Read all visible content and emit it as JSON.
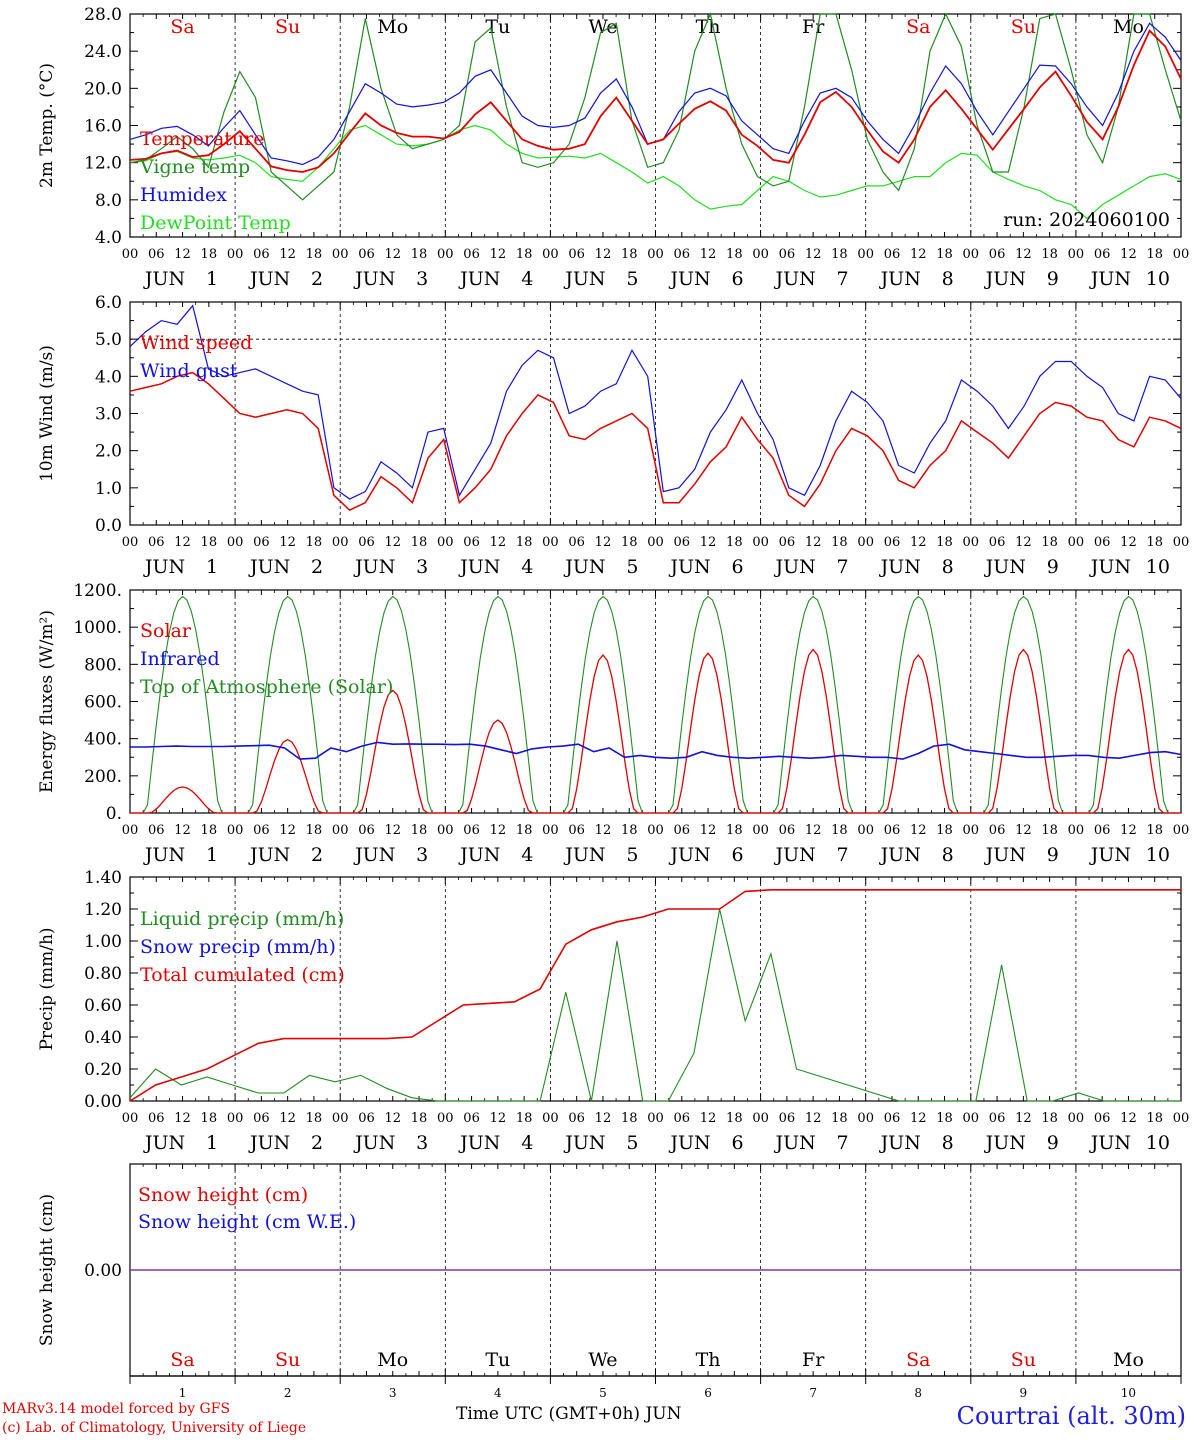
{
  "colors": {
    "temperature": "#e00000",
    "vigne": "#228b22",
    "humidex": "#1010e0",
    "dewpoint": "#22dd22",
    "snow_height": "#e00000",
    "snow_we": "#1010e0",
    "zero_line": "#7a3aa0"
  },
  "day_labels": [
    "Sa",
    "Su",
    "Mo",
    "Tu",
    "We",
    "Th",
    "Fr",
    "Sa",
    "Su",
    "Mo"
  ],
  "day_label_colors": [
    "#e00000",
    "#e00000",
    "#000000",
    "#000000",
    "#000000",
    "#000000",
    "#000000",
    "#e00000",
    "#e00000",
    "#000000"
  ],
  "day_numbers": [
    "1",
    "2",
    "3",
    "4",
    "5",
    "6",
    "7",
    "8",
    "9",
    "10"
  ],
  "hour_ticks": [
    "00",
    "06",
    "12",
    "18"
  ],
  "month": "JUN",
  "footer": {
    "line1": "MARv3.14 model forced by GFS",
    "line2": "(c) Lab. of Climatology, University of Liege",
    "axis_title": "Time UTC (GMT+0h)",
    "axis_month": "JUN",
    "station": "Courtrai (alt. 30m)"
  },
  "chart_data": [
    {
      "type": "line",
      "ylabel": "2m Temp. (°C)",
      "ylim": [
        4.0,
        28.0
      ],
      "yticks": [
        "4.0",
        "8.0",
        "12.0",
        "16.0",
        "20.0",
        "24.0",
        "28.0"
      ],
      "run_label": "run: 2024060100",
      "series": [
        {
          "name": "Temperature",
          "color": "#e00000",
          "values": [
            12.3,
            12.4,
            13.0,
            13.3,
            12.6,
            12.8,
            14.0,
            15.4,
            13.5,
            11.6,
            11.2,
            11.0,
            11.5,
            13.0,
            15.2,
            17.3,
            16.0,
            15.2,
            14.8,
            14.8,
            14.6,
            15.3,
            17.2,
            18.5,
            16.5,
            14.5,
            13.8,
            13.4,
            13.5,
            14.0,
            17.0,
            19.0,
            16.5,
            14.0,
            14.5,
            16.2,
            17.8,
            18.6,
            17.6,
            15.0,
            13.8,
            12.3,
            12.0,
            15.0,
            18.5,
            19.6,
            18.0,
            15.5,
            13.2,
            12.0,
            14.5,
            18.0,
            19.8,
            17.8,
            15.6,
            13.4,
            15.6,
            17.8,
            20.1,
            21.8,
            19.2,
            16.4,
            14.5,
            18.0,
            22.5,
            26.2,
            24.5,
            21.0
          ]
        },
        {
          "name": "Vigne temp",
          "color": "#228b22",
          "values": [
            12.0,
            12.3,
            13.5,
            14.8,
            13.5,
            11.5,
            17.5,
            21.8,
            19.0,
            11.0,
            9.5,
            8.0,
            9.5,
            11.0,
            18.0,
            27.5,
            20.0,
            15.0,
            13.5,
            14.0,
            14.5,
            16.0,
            25.0,
            26.5,
            18.0,
            12.0,
            11.5,
            12.0,
            14.0,
            19.0,
            26.0,
            27.0,
            16.5,
            11.5,
            12.0,
            15.5,
            24.0,
            28.0,
            20.0,
            14.0,
            10.5,
            9.5,
            10.0,
            18.0,
            28.0,
            29.0,
            22.0,
            14.5,
            11.0,
            9.0,
            13.5,
            24.0,
            28.0,
            24.5,
            16.0,
            11.0,
            11.0,
            18.0,
            27.5,
            28.5,
            22.0,
            15.0,
            12.0,
            18.0,
            28.0,
            28.0,
            22.0,
            16.5
          ]
        },
        {
          "name": "Humidex",
          "color": "#1010e0",
          "values": [
            14.5,
            15.0,
            15.7,
            15.9,
            15.0,
            13.8,
            15.8,
            17.6,
            15.0,
            12.5,
            12.2,
            11.8,
            12.6,
            14.5,
            17.5,
            20.5,
            19.5,
            18.3,
            18.0,
            18.2,
            18.5,
            19.5,
            21.3,
            22.0,
            19.5,
            17.0,
            16.0,
            15.8,
            16.0,
            16.8,
            19.5,
            21.0,
            18.0,
            14.0,
            14.5,
            17.5,
            19.5,
            20.0,
            19.2,
            16.5,
            15.0,
            13.5,
            13.0,
            16.5,
            19.5,
            20.0,
            19.0,
            16.5,
            14.5,
            13.0,
            16.0,
            19.5,
            22.4,
            20.5,
            17.5,
            15.0,
            17.5,
            20.0,
            22.5,
            22.4,
            20.5,
            18.0,
            16.0,
            19.5,
            24.0,
            27.0,
            25.5,
            23.0
          ]
        },
        {
          "name": "DewPoint Temp",
          "color": "#22dd22",
          "values": [
            12.0,
            12.2,
            13.0,
            13.2,
            12.5,
            12.3,
            12.5,
            12.8,
            12.0,
            10.5,
            10.2,
            10.0,
            11.5,
            13.5,
            15.5,
            16.0,
            15.0,
            14.0,
            13.8,
            14.0,
            14.5,
            15.5,
            16.0,
            15.5,
            14.0,
            13.0,
            12.5,
            12.6,
            12.7,
            12.5,
            13.0,
            12.0,
            11.0,
            9.8,
            10.5,
            9.5,
            8.0,
            7.0,
            7.3,
            7.5,
            9.0,
            10.5,
            10.0,
            9.0,
            8.3,
            8.5,
            9.0,
            9.5,
            9.5,
            10.0,
            10.5,
            10.5,
            12.0,
            13.0,
            12.8,
            11.0,
            10.2,
            9.5,
            9.0,
            8.0,
            7.5,
            6.0,
            7.5,
            8.5,
            9.5,
            10.5,
            10.8,
            10.2
          ]
        }
      ]
    },
    {
      "type": "line",
      "ylabel": "10m Wind (m/s)",
      "ylim": [
        0.0,
        6.0
      ],
      "yticks": [
        "0.0",
        "1.0",
        "2.0",
        "3.0",
        "4.0",
        "5.0",
        "6.0"
      ],
      "dashed_reference": 5.0,
      "series": [
        {
          "name": "Wind speed",
          "color": "#e00000",
          "values": [
            3.6,
            3.7,
            3.8,
            4.0,
            4.1,
            3.8,
            3.4,
            3.0,
            2.9,
            3.0,
            3.1,
            3.0,
            2.6,
            0.8,
            0.4,
            0.6,
            1.3,
            1.0,
            0.6,
            1.8,
            2.3,
            0.6,
            1.0,
            1.5,
            2.4,
            3.0,
            3.5,
            3.3,
            2.4,
            2.3,
            2.6,
            2.8,
            3.0,
            2.6,
            0.6,
            0.6,
            1.1,
            1.7,
            2.1,
            2.9,
            2.3,
            1.8,
            0.8,
            0.5,
            1.1,
            2.0,
            2.6,
            2.4,
            2.0,
            1.2,
            1.0,
            1.6,
            2.0,
            2.8,
            2.5,
            2.2,
            1.8,
            2.4,
            3.0,
            3.3,
            3.2,
            2.9,
            2.8,
            2.3,
            2.1,
            2.9,
            2.8,
            2.6
          ]
        },
        {
          "name": "Wind gust",
          "color": "#1010e0",
          "values": [
            4.8,
            5.2,
            5.5,
            5.4,
            5.9,
            4.2,
            4.0,
            4.1,
            4.2,
            4.0,
            3.8,
            3.6,
            3.5,
            1.0,
            0.7,
            0.9,
            1.7,
            1.4,
            1.0,
            2.5,
            2.6,
            0.8,
            1.5,
            2.2,
            3.6,
            4.3,
            4.7,
            4.5,
            3.0,
            3.2,
            3.6,
            3.8,
            4.7,
            4.0,
            0.9,
            1.0,
            1.5,
            2.5,
            3.1,
            3.9,
            3.0,
            2.3,
            1.0,
            0.8,
            1.6,
            2.8,
            3.6,
            3.3,
            2.8,
            1.6,
            1.4,
            2.2,
            2.8,
            3.9,
            3.6,
            3.2,
            2.6,
            3.2,
            4.0,
            4.4,
            4.4,
            4.0,
            3.7,
            3.0,
            2.8,
            4.0,
            3.9,
            3.4
          ]
        }
      ]
    },
    {
      "type": "line",
      "ylabel": "Energy fluxes (W/m²)",
      "ylim": [
        0,
        1200
      ],
      "yticks": [
        "0.",
        "200.",
        "400.",
        "600.",
        "800.",
        "1000.",
        "1200."
      ],
      "series": [
        {
          "name": "Solar",
          "color": "#e00000",
          "day_peaks": [
            140,
            395,
            660,
            500,
            850,
            860,
            880,
            850,
            880,
            880
          ]
        },
        {
          "name": "Infrared",
          "color": "#1010e0",
          "values": [
            355,
            355,
            358,
            360,
            358,
            358,
            358,
            360,
            362,
            365,
            350,
            290,
            295,
            350,
            330,
            360,
            380,
            370,
            372,
            370,
            370,
            368,
            370,
            360,
            340,
            320,
            345,
            355,
            360,
            370,
            330,
            350,
            300,
            310,
            300,
            295,
            300,
            330,
            310,
            300,
            295,
            300,
            305,
            300,
            295,
            300,
            310,
            305,
            300,
            300,
            290,
            320,
            360,
            370,
            340,
            330,
            320,
            310,
            300,
            300,
            305,
            310,
            310,
            300,
            295,
            310,
            325,
            330,
            315
          ]
        },
        {
          "name": "Top of Atmosphere (Solar)",
          "color": "#228b22",
          "day_peak": 1165
        }
      ]
    },
    {
      "type": "line",
      "ylabel": "Precip (mm/h)",
      "ylim": [
        0.0,
        1.4
      ],
      "yticks": [
        "0.00",
        "0.20",
        "0.40",
        "0.60",
        "0.80",
        "1.00",
        "1.20",
        "1.40"
      ],
      "series": [
        {
          "name": "Liquid precip (mm/h)",
          "color": "#228b22",
          "values": [
            0.02,
            0.2,
            0.1,
            0.15,
            0.1,
            0.05,
            0.05,
            0.16,
            0.12,
            0.16,
            0.08,
            0.02,
            0.0,
            0.0,
            0.0,
            0.0,
            0.0,
            0.68,
            0.0,
            1.0,
            0.0,
            0.0,
            0.3,
            1.2,
            0.5,
            0.92,
            0.2,
            0.15,
            0.1,
            0.05,
            0.0,
            0.0,
            0.0,
            0.0,
            0.85,
            0.0,
            0.0,
            0.05,
            0.0,
            0.0,
            0.0,
            0.0
          ]
        },
        {
          "name": "Snow precip (mm/h)",
          "color": "#1010e0",
          "values": [
            0,
            0
          ]
        },
        {
          "name": "Total cumulated (cm)",
          "color": "#e00000",
          "values": [
            0.0,
            0.1,
            0.15,
            0.2,
            0.28,
            0.36,
            0.39,
            0.39,
            0.39,
            0.39,
            0.39,
            0.4,
            0.5,
            0.6,
            0.61,
            0.62,
            0.7,
            0.98,
            1.07,
            1.12,
            1.15,
            1.2,
            1.2,
            1.2,
            1.31,
            1.32,
            1.32,
            1.32,
            1.32,
            1.32,
            1.32,
            1.32,
            1.32,
            1.32,
            1.32,
            1.32,
            1.32,
            1.32,
            1.32,
            1.32,
            1.32,
            1.32
          ]
        }
      ]
    },
    {
      "type": "line",
      "ylabel": "Snow height (cm)",
      "yticks": [
        "0.00"
      ],
      "series": [
        {
          "name": "Snow height (cm)",
          "color": "#e00000",
          "values": [
            0.0,
            0.0
          ]
        },
        {
          "name": "Snow height (cm W.E.)",
          "color": "#1010e0",
          "values": [
            0.0,
            0.0
          ]
        }
      ]
    }
  ]
}
